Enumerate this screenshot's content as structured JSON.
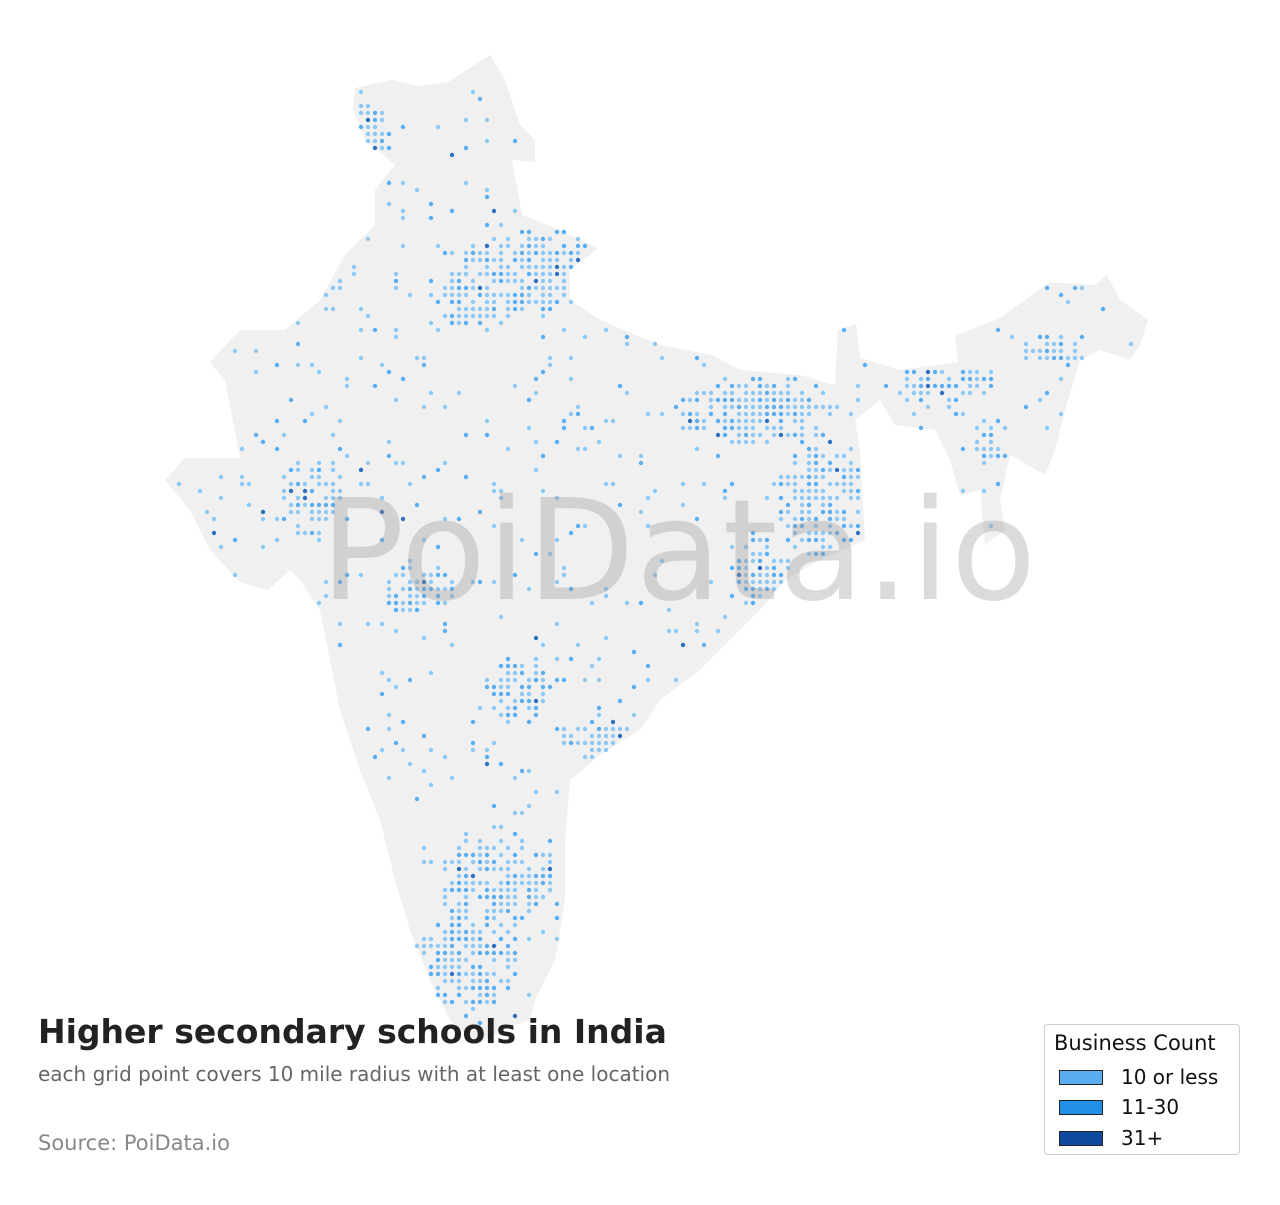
{
  "map": {
    "watermark": "PoiData.io",
    "title": "Higher secondary schools in India",
    "subtitle": "each grid point covers 10 mile radius with at least one location",
    "source": "Source: PoiData.io",
    "land_color": "#f0f0f0",
    "legend": {
      "title": "Business Count",
      "items": [
        {
          "label": "10 or less",
          "color": "#5aaef0"
        },
        {
          "label": "11-30",
          "color": "#2190e6"
        },
        {
          "label": "31+",
          "color": "#0f4aa0"
        }
      ]
    }
  }
}
